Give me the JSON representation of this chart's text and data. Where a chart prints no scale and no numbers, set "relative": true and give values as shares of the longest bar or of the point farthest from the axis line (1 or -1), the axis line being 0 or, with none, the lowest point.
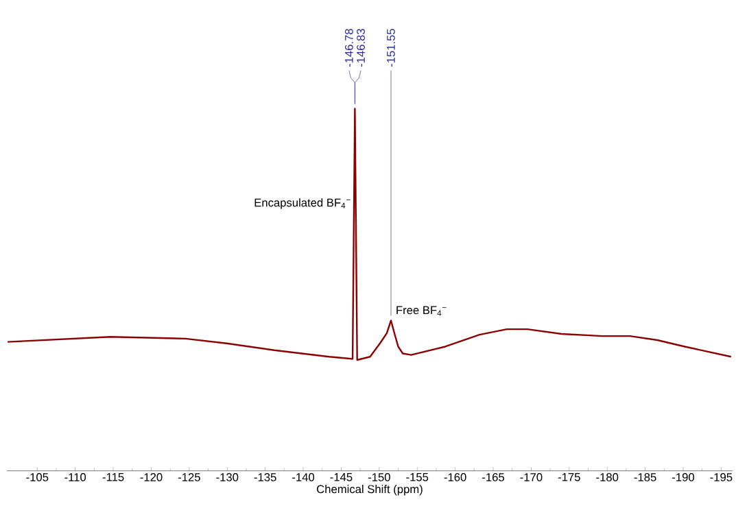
{
  "chart_data": {
    "type": "line",
    "relative": true,
    "xlabel": "Chemical Shift (ppm)",
    "xlim": [
      -101,
      -196.5
    ],
    "xticks": [
      -105,
      -110,
      -115,
      -120,
      -125,
      -130,
      -135,
      -140,
      -145,
      -150,
      -155,
      -160,
      -165,
      -170,
      -175,
      -180,
      -185,
      -190,
      -195
    ],
    "series": [
      {
        "color": "#8b0000",
        "x": [
          -101.1,
          -114.6,
          -124.5,
          -129.9,
          -136.2,
          -143.4,
          -146.5,
          -146.8,
          -147.1,
          -148.8,
          -150.1,
          -151.0,
          -151.55,
          -152.0,
          -152.5,
          -153.1,
          -154.2,
          -158.7,
          -163.2,
          -166.8,
          -169.5,
          -174.0,
          -179.4,
          -183.0,
          -186.6,
          -190.2,
          -196.3
        ],
        "values": [
          0.356,
          0.37,
          0.365,
          0.352,
          0.333,
          0.315,
          0.309,
          1.0,
          0.306,
          0.315,
          0.352,
          0.38,
          0.415,
          0.38,
          0.343,
          0.324,
          0.32,
          0.343,
          0.376,
          0.391,
          0.391,
          0.378,
          0.372,
          0.372,
          0.361,
          0.343,
          0.315
        ]
      }
    ],
    "annotations": [
      {
        "text": "-146.78",
        "x": -146.78,
        "y": 1.0
      },
      {
        "text": "-146.83",
        "x": -146.83,
        "y": 1.0
      },
      {
        "text": "-151.55",
        "x": -151.55,
        "y": 0.415
      },
      {
        "text": "Encapsulated BF$_{4}$$^{−}$",
        "x": -146.8,
        "y": 0.72
      },
      {
        "text": "Free BF$_{4}$$^{−}$",
        "x": -151.55,
        "y": 0.415
      }
    ]
  }
}
